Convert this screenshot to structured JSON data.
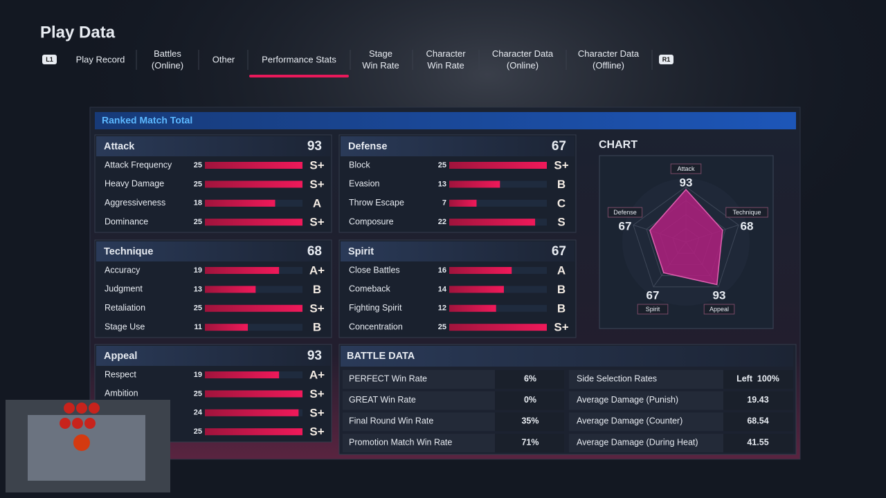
{
  "header": {
    "title": "Play Data",
    "left_button": "L1",
    "right_button": "R1",
    "tabs": [
      {
        "lines": [
          "Play Record"
        ]
      },
      {
        "lines": [
          "Battles",
          "(Online)"
        ]
      },
      {
        "lines": [
          "Other"
        ]
      },
      {
        "lines": [
          "Performance Stats"
        ],
        "active": true
      },
      {
        "lines": [
          "Stage",
          "Win Rate"
        ]
      },
      {
        "lines": [
          "Character",
          "Win Rate"
        ]
      },
      {
        "lines": [
          "Character Data",
          "(Online)"
        ]
      },
      {
        "lines": [
          "Character Data",
          "(Offline)"
        ]
      }
    ]
  },
  "panel": {
    "title": "Ranked Match Total",
    "groups": [
      {
        "name": "Attack",
        "total": 93,
        "stats": [
          {
            "name": "Attack Frequency",
            "value": 25,
            "grade": "S+"
          },
          {
            "name": "Heavy Damage",
            "value": 25,
            "grade": "S+"
          },
          {
            "name": "Aggressiveness",
            "value": 18,
            "grade": "A"
          },
          {
            "name": "Dominance",
            "value": 25,
            "grade": "S+"
          }
        ]
      },
      {
        "name": "Defense",
        "total": 67,
        "stats": [
          {
            "name": "Block",
            "value": 25,
            "grade": "S+"
          },
          {
            "name": "Evasion",
            "value": 13,
            "grade": "B"
          },
          {
            "name": "Throw Escape",
            "value": 7,
            "grade": "C"
          },
          {
            "name": "Composure",
            "value": 22,
            "grade": "S"
          }
        ]
      },
      {
        "name": "Technique",
        "total": 68,
        "stats": [
          {
            "name": "Accuracy",
            "value": 19,
            "grade": "A+"
          },
          {
            "name": "Judgment",
            "value": 13,
            "grade": "B"
          },
          {
            "name": "Retaliation",
            "value": 25,
            "grade": "S+"
          },
          {
            "name": "Stage Use",
            "value": 11,
            "grade": "B"
          }
        ]
      },
      {
        "name": "Spirit",
        "total": 67,
        "stats": [
          {
            "name": "Close Battles",
            "value": 16,
            "grade": "A"
          },
          {
            "name": "Comeback",
            "value": 14,
            "grade": "B"
          },
          {
            "name": "Fighting Spirit",
            "value": 12,
            "grade": "B"
          },
          {
            "name": "Concentration",
            "value": 25,
            "grade": "S+"
          }
        ]
      },
      {
        "name": "Appeal",
        "total": 93,
        "stats": [
          {
            "name": "Respect",
            "value": 19,
            "grade": "A+"
          },
          {
            "name": "Ambition",
            "value": 25,
            "grade": "S+"
          },
          {
            "name": null,
            "value": 24,
            "grade": "S+"
          },
          {
            "name": null,
            "value": 25,
            "grade": "S+"
          }
        ]
      }
    ],
    "chart": {
      "title": "CHART",
      "axes": [
        {
          "label": "Attack",
          "value": 93
        },
        {
          "label": "Technique",
          "value": 68
        },
        {
          "label": "Appeal",
          "value": 93
        },
        {
          "label": "Spirit",
          "value": 67
        },
        {
          "label": "Defense",
          "value": 67
        }
      ]
    },
    "battle_data": {
      "title": "BATTLE DATA",
      "rows": [
        [
          "PERFECT Win Rate",
          "6%",
          "Side Selection Rates",
          "Left  100%"
        ],
        [
          "GREAT Win Rate",
          "0%",
          "Average Damage (Punish)",
          "19.43"
        ],
        [
          "Final Round Win Rate",
          "35%",
          "Average Damage (Counter)",
          "68.54"
        ],
        [
          "Promotion Match Win Rate",
          "71%",
          "Average Damage (During Heat)",
          "41.55"
        ]
      ]
    }
  }
}
